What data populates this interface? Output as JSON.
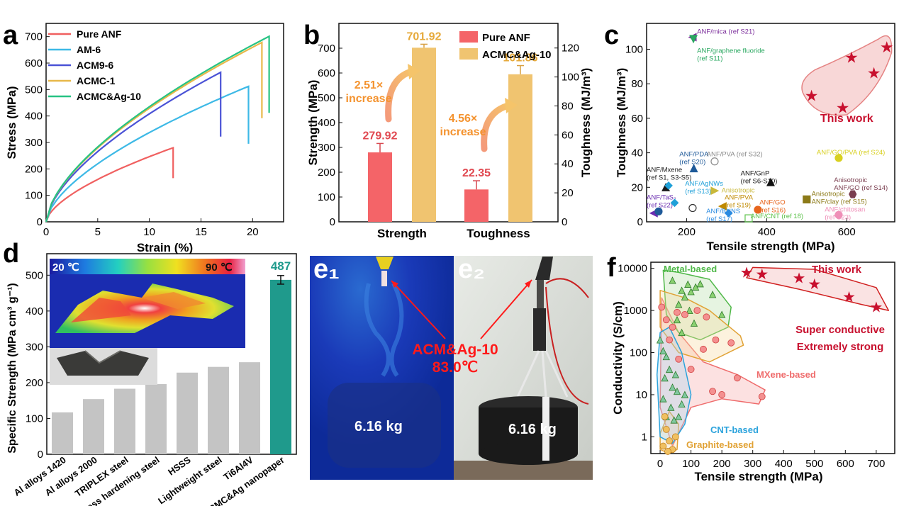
{
  "panels": {
    "a": "a",
    "b": "b",
    "c": "c",
    "d": "d",
    "e1": "e₁",
    "e2": "e₂",
    "f": "f"
  },
  "chart_data": [
    {
      "id": "a",
      "type": "line",
      "xlabel": "Strain (%)",
      "ylabel": "Stress (MPa)",
      "xlim": [
        0,
        23
      ],
      "ylim": [
        0,
        750
      ],
      "xticks": [
        0,
        5,
        10,
        15,
        20
      ],
      "yticks": [
        0,
        100,
        200,
        300,
        400,
        500,
        600,
        700
      ],
      "series": [
        {
          "name": "Pure ANF",
          "color": "#f06060",
          "end_strain": 12.3,
          "max_stress": 280,
          "drop_to": 165
        },
        {
          "name": "AM-6",
          "color": "#3db9e6",
          "end_strain": 19.6,
          "max_stress": 512,
          "drop_to": 295
        },
        {
          "name": "ACM9-6",
          "color": "#4a52d6",
          "end_strain": 16.9,
          "max_stress": 565,
          "drop_to": 322
        },
        {
          "name": "ACMC-1",
          "color": "#e8b84a",
          "end_strain": 20.9,
          "max_stress": 678,
          "drop_to": 392
        },
        {
          "name": "ACMC&Ag-10",
          "color": "#27c383",
          "end_strain": 21.6,
          "max_stress": 701,
          "drop_to": 412
        }
      ]
    },
    {
      "id": "b",
      "type": "bar",
      "categories": [
        "Strength",
        "Toughness"
      ],
      "ylabel_left": "Strength (MPa)",
      "ylabel_right": "Toughness (MJ/m³)",
      "ylim_left": [
        0,
        800
      ],
      "ylim_right": [
        0,
        137
      ],
      "yticks_left": [
        0,
        100,
        200,
        300,
        400,
        500,
        600,
        700
      ],
      "yticks_right": [
        0,
        20,
        40,
        60,
        80,
        100,
        120
      ],
      "series": [
        {
          "name": "Pure ANF",
          "color": "#f46468",
          "values": [
            279.92,
            22.35
          ],
          "labels": [
            "279.92",
            "22.35"
          ],
          "err": [
            36,
            6
          ]
        },
        {
          "name": "ACMC&Ag-10",
          "color": "#f0c470",
          "values": [
            701.92,
            101.86
          ],
          "labels": [
            "701.92",
            "101.86"
          ],
          "err": [
            14,
            6
          ]
        }
      ],
      "annotations": [
        {
          "line1": "2.51×",
          "line2": "increase"
        },
        {
          "line1": "4.56×",
          "line2": "increase"
        }
      ]
    },
    {
      "id": "c",
      "type": "scatter",
      "xlabel": "Tensile strength (MPa)",
      "ylabel": "Toughness (MJ/m³)",
      "xlim": [
        100,
        720
      ],
      "ylim": [
        0,
        115
      ],
      "xticks": [
        200,
        400,
        600
      ],
      "yticks": [
        0,
        20,
        40,
        60,
        80,
        100
      ],
      "this_work_label": "This work",
      "this_work_points": [
        [
          590,
          66
        ],
        [
          512,
          73
        ],
        [
          612,
          95
        ],
        [
          668,
          86
        ],
        [
          700,
          101
        ]
      ],
      "points": [
        {
          "label": "ANF/mica (ref S21)",
          "x": 215,
          "y": 107,
          "color": "#7b2d9b",
          "marker": "tri-left",
          "lx": 226,
          "ly": 109
        },
        {
          "label": "ANF/graphene fluoride",
          "label2": "(ref S11)",
          "x": 217,
          "y": 106,
          "color": "#2aa860",
          "marker": "tri-down",
          "lx": 226,
          "ly": 98
        },
        {
          "label": "ANF/PDA",
          "label2": "(ref S20)",
          "x": 218,
          "y": 31,
          "color": "#1f5a99",
          "marker": "tri-up",
          "lx": 182,
          "ly": 38
        },
        {
          "label": "ANF/PVA (ref S32)",
          "x": 270,
          "y": 35,
          "color": "#8a8a8a",
          "marker": "circle-half",
          "lx": 250,
          "ly": 38
        },
        {
          "label": "ANF/GO/PVA (ref S24)",
          "x": 580,
          "y": 37,
          "color": "#d8d020",
          "marker": "circle",
          "lx": 525,
          "ly": 39
        },
        {
          "label": "ANF/Mxene",
          "label2": "(ref S1, S3-S5)",
          "x": 148,
          "y": 20,
          "color": "#1a1a1a",
          "marker": "tri-up",
          "lx": 100,
          "ly": 29
        },
        {
          "label": "ANF/GnP",
          "label2": "(ref S6-S10)",
          "x": 410,
          "y": 23,
          "color": "#111111",
          "marker": "tri-up",
          "lx": 335,
          "ly": 27
        },
        {
          "label": "ANF/AgNWs",
          "label2": "(ref S13)",
          "x": 155,
          "y": 21,
          "color": "#1fa0d8",
          "marker": "diamond",
          "lx": 196,
          "ly": 21
        },
        {
          "label": "Anisotropic",
          "x": 270,
          "y": 18,
          "color": "#c9b83a",
          "marker": "tri-right",
          "lx": 287,
          "ly": 17
        },
        {
          "label": "ANF/PVA",
          "label2": "(ref S19)",
          "x": 290,
          "y": 9,
          "color": "#c08a00",
          "marker": "tri-left",
          "lx": 295,
          "ly": 13
        },
        {
          "label": "ANF/GO",
          "label2": "(ref S16)",
          "x": 378,
          "y": 7,
          "color": "#e7651c",
          "marker": "circle",
          "lx": 382,
          "ly": 10
        },
        {
          "label": "Anisotropic",
          "label2": "ANF/clay (ref S15)",
          "x": 500,
          "y": 13,
          "color": "#8c7a18",
          "marker": "square",
          "lx": 512,
          "ly": 15
        },
        {
          "label": "Anisotropic",
          "label2": "ANF/GO (ref S14)",
          "x": 615,
          "y": 16,
          "color": "#7b3f50",
          "marker": "hexagon",
          "lx": 568,
          "ly": 23
        },
        {
          "label": "ANF/chitosan",
          "label2": "(ref S23)",
          "x": 580,
          "y": 4,
          "color": "#ef8fb8",
          "marker": "circle",
          "lx": 545,
          "ly": 6
        },
        {
          "label": "ANF/TaS₂",
          "label2": "(ref S22)",
          "x": 118,
          "y": 5,
          "color": "#6a2db0",
          "marker": "tri-left",
          "lx": 100,
          "ly": 13
        },
        {
          "label": "ANF/BNNS",
          "label2": "(ref S17)",
          "x": 305,
          "y": 5,
          "color": "#2a8ae0",
          "marker": "diamond",
          "lx": 249,
          "ly": 5
        },
        {
          "label": "ANF/CNT (ref 18)",
          "x": 355,
          "y": 2,
          "color": "#5cc24a",
          "marker": "square-open",
          "lx": 360,
          "ly": 2
        },
        {
          "label": "",
          "x": 130,
          "y": 6,
          "color": "#1f5a99",
          "marker": "circle",
          "lx": 0,
          "ly": 0
        },
        {
          "label": "",
          "x": 170,
          "y": 11,
          "color": "#1fa0d8",
          "marker": "diamond",
          "lx": 0,
          "ly": 0
        },
        {
          "label": "",
          "x": 215,
          "y": 8,
          "color": "#333333",
          "marker": "circle-half",
          "lx": 0,
          "ly": 0
        }
      ]
    },
    {
      "id": "d",
      "type": "bar",
      "ylabel": "Specific Strength (MPa cm³ g⁻¹)",
      "ylim": [
        0,
        560
      ],
      "yticks": [
        0,
        100,
        200,
        300,
        400,
        500
      ],
      "categories": [
        "Al alloys 1420",
        "Al alloys 2000",
        "TRIPLEX steel",
        "Press hardening steel",
        "HSSS",
        "Lightweight steel",
        "Ti6Al4V",
        "ACMC&Ag nanopaper"
      ],
      "values": [
        117,
        154,
        183,
        196,
        228,
        244,
        257,
        487
      ],
      "highlight_label": "487",
      "colors": {
        "default": "#c4c4c4",
        "highlight": "#1f9a8c"
      },
      "colorbar": {
        "min": "20 ℃",
        "max": "90 ℃"
      }
    },
    {
      "id": "f",
      "type": "scatter",
      "xlabel": "Tensile strength (MPa)",
      "ylabel": "Conductivity (S/cm)",
      "xscale": "linear",
      "yscale": "log",
      "xlim": [
        -30,
        760
      ],
      "ylim": [
        0.4,
        14000
      ],
      "xticks": [
        0,
        100,
        200,
        300,
        400,
        500,
        600,
        700
      ],
      "yticks": [
        1,
        10,
        100,
        1000,
        10000
      ],
      "this_work_points": [
        [
          280,
          8000
        ],
        [
          330,
          7200
        ],
        [
          450,
          5800
        ],
        [
          500,
          4200
        ],
        [
          612,
          2100
        ],
        [
          700,
          1200
        ]
      ],
      "this_work_label": "This work",
      "callout_line1": "Super conductive",
      "callout_line2": "Extremely strong",
      "regions": [
        {
          "name": "Metal-based",
          "color": "#4fb848"
        },
        {
          "name": "MXene-based",
          "color": "#ef6c6c"
        },
        {
          "name": "CNT-based",
          "color": "#2ca3dc"
        },
        {
          "name": "Graphite-based",
          "color": "#e1a235"
        }
      ],
      "metal_points": [
        [
          40,
          5200
        ],
        [
          70,
          3000
        ],
        [
          90,
          4200
        ],
        [
          100,
          2800
        ],
        [
          115,
          3600
        ],
        [
          130,
          4300
        ],
        [
          80,
          2100
        ],
        [
          170,
          2400
        ],
        [
          200,
          800
        ],
        [
          60,
          1400
        ],
        [
          55,
          600
        ],
        [
          95,
          1000
        ],
        [
          110,
          500
        ],
        [
          70,
          300
        ]
      ],
      "mxene_points": [
        [
          5,
          1200
        ],
        [
          20,
          600
        ],
        [
          40,
          400
        ],
        [
          55,
          900
        ],
        [
          80,
          800
        ],
        [
          120,
          1000
        ],
        [
          150,
          700
        ],
        [
          180,
          200
        ],
        [
          230,
          170
        ],
        [
          140,
          120
        ],
        [
          60,
          70
        ],
        [
          100,
          40
        ],
        [
          170,
          12
        ],
        [
          200,
          10
        ],
        [
          250,
          25
        ],
        [
          330,
          9
        ],
        [
          30,
          200
        ]
      ],
      "cnt_points": [
        [
          0,
          200
        ],
        [
          10,
          110
        ],
        [
          20,
          80
        ],
        [
          30,
          40
        ],
        [
          15,
          25
        ],
        [
          40,
          15
        ],
        [
          50,
          30
        ],
        [
          55,
          12
        ],
        [
          10,
          8
        ],
        [
          35,
          5
        ],
        [
          60,
          3
        ],
        [
          20,
          3
        ],
        [
          45,
          2.5
        ],
        [
          70,
          6
        ],
        [
          80,
          10
        ]
      ],
      "graphite_points": [
        [
          10,
          0.6
        ],
        [
          20,
          1.5
        ],
        [
          30,
          0.8
        ],
        [
          40,
          0.5
        ],
        [
          50,
          1.0
        ],
        [
          15,
          3
        ],
        [
          25,
          0.45
        ]
      ]
    }
  ],
  "photos": {
    "e1_weight": "6.16 kg",
    "e2_weight": "6.16 kg",
    "label_line1": "ACM&Ag-10",
    "label_line2": "83.0℃"
  }
}
